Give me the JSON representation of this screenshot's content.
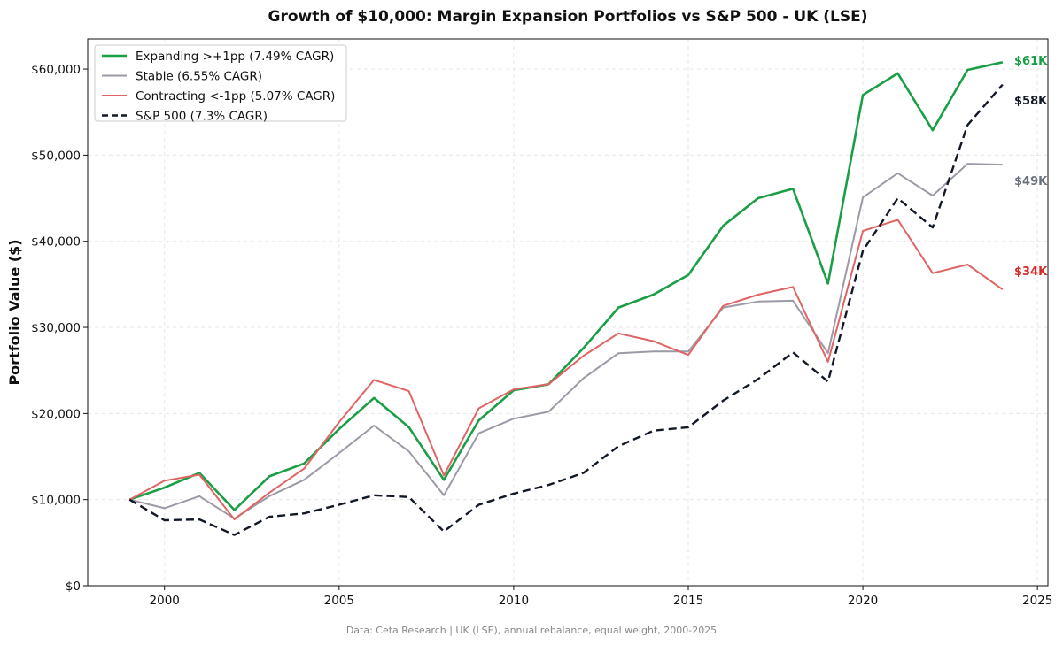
{
  "chart_data": {
    "type": "line",
    "title": "Growth of $10,000: Margin Expansion Portfolios vs S&P 500 - UK (LSE)",
    "ylabel": "Portfolio Value ($)",
    "xlabel": "",
    "footer": "Data: Ceta Research | UK (LSE), annual rebalance, equal weight, 2000-2025",
    "xlim": [
      1997.8,
      2025.3
    ],
    "ylim": [
      0,
      63500
    ],
    "x_ticks": [
      2000,
      2005,
      2010,
      2015,
      2020,
      2025
    ],
    "y_ticks": [
      0,
      10000,
      20000,
      30000,
      40000,
      50000,
      60000
    ],
    "y_tick_labels": [
      "$0",
      "$10,000",
      "$20,000",
      "$30,000",
      "$40,000",
      "$50,000",
      "$60,000"
    ],
    "grid": true,
    "legend_position": "top-left",
    "x": [
      1999,
      2000,
      2001,
      2002,
      2003,
      2004,
      2005,
      2006,
      2007,
      2008,
      2009,
      2010,
      2011,
      2012,
      2013,
      2014,
      2015,
      2016,
      2017,
      2018,
      2019,
      2020,
      2021,
      2022,
      2023,
      2024
    ],
    "series": [
      {
        "name": "Expanding >+1pp (7.49% CAGR)",
        "color": "#1a9e46",
        "dash": "solid",
        "width": 2.6,
        "end_label": "$61K",
        "values": [
          10000,
          11400,
          13100,
          8800,
          12700,
          14200,
          18200,
          21800,
          18400,
          12300,
          19200,
          22700,
          23400,
          27600,
          32300,
          33800,
          36100,
          41800,
          45000,
          46100,
          35100,
          57000,
          59500,
          52900,
          59900,
          60800
        ]
      },
      {
        "name": "Stable (6.55% CAGR)",
        "color": "#9c9aa6",
        "dash": "solid",
        "width": 2,
        "end_label": "$49K",
        "values": [
          10000,
          9000,
          10400,
          7800,
          10400,
          12300,
          15400,
          18600,
          15600,
          10500,
          17700,
          19400,
          20200,
          24100,
          27000,
          27200,
          27200,
          32300,
          33000,
          33100,
          27000,
          45100,
          47900,
          45300,
          49000,
          48900
        ]
      },
      {
        "name": "Contracting <-1pp (5.07% CAGR)",
        "color": "#e06464",
        "dash": "solid",
        "width": 2,
        "end_label": "$34K",
        "values": [
          10000,
          12200,
          12900,
          7700,
          10800,
          13600,
          19000,
          23900,
          22600,
          12800,
          20600,
          22800,
          23400,
          26700,
          29300,
          28400,
          26800,
          32500,
          33800,
          34700,
          26000,
          41200,
          42500,
          36300,
          37300,
          34400
        ]
      },
      {
        "name": "S&P 500 (7.3% CAGR)",
        "color": "#111827",
        "dash": "dashed",
        "width": 2.4,
        "end_label": "$58K",
        "values": [
          10000,
          7600,
          7700,
          5900,
          8000,
          8400,
          9400,
          10500,
          10300,
          6300,
          9400,
          10700,
          11700,
          13100,
          16200,
          18000,
          18400,
          21500,
          24000,
          27100,
          23700,
          38900,
          45000,
          41600,
          53500,
          58200
        ]
      }
    ],
    "end_label_colors": {
      "Expanding >+1pp (7.49% CAGR)": "#1a9e46",
      "Stable (6.55% CAGR)": "#6b7280",
      "Contracting <-1pp (5.07% CAGR)": "#d62b2b",
      "S&P 500 (7.3% CAGR)": "#111827"
    }
  }
}
